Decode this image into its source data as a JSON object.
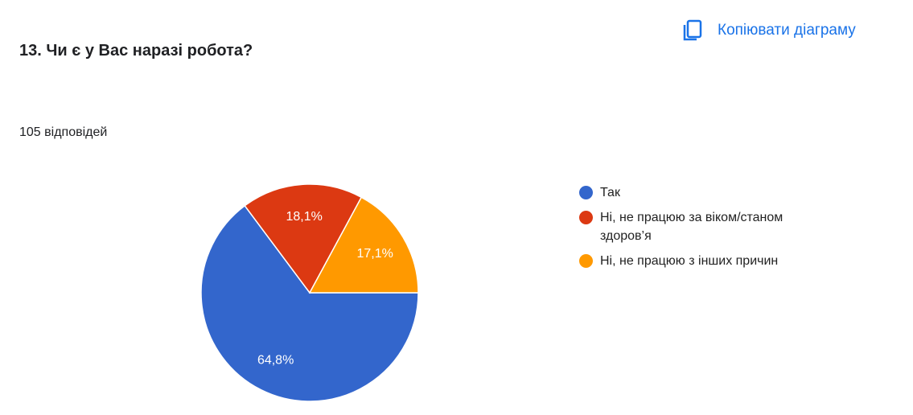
{
  "copy_button": "Копіювати діаграму",
  "chart_data": {
    "type": "pie",
    "title": "13. Чи є у Вас наразі робота?",
    "subtitle": "105 відповідей",
    "categories": [
      "Так",
      "Ні, не працюю за віком/станом здоров’я",
      "Ні, не працюю з інших причин"
    ],
    "values": [
      64.8,
      18.1,
      17.1
    ],
    "value_labels": [
      "64,8%",
      "18,1%",
      "17,1%"
    ],
    "colors": [
      "#3366cc",
      "#dc3912",
      "#ff9900"
    ],
    "legend": "right"
  }
}
